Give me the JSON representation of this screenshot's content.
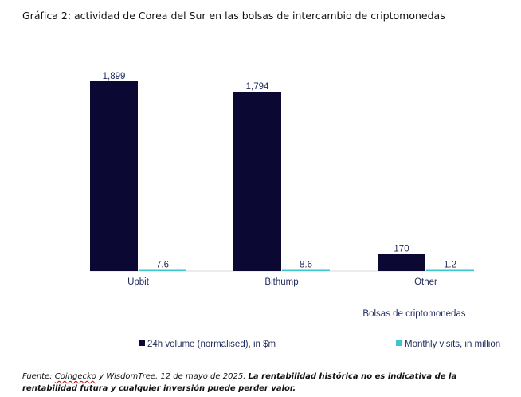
{
  "title": "Gráfica 2: actividad de Corea del Sur en las bolsas de intercambio de criptomonedas",
  "chart_data": {
    "type": "bar",
    "categories": [
      "Upbit",
      "Bithump",
      "Other"
    ],
    "series": [
      {
        "name": "24h volume (normalised), in $m",
        "values": [
          1899,
          1794,
          170
        ],
        "labels": [
          "1,899",
          "1,794",
          "170"
        ],
        "color": "#0b0833"
      },
      {
        "name": "Monthly visits, in million",
        "values": [
          7.6,
          8.6,
          1.2
        ],
        "labels": [
          "7.6",
          "8.6",
          "1.2"
        ],
        "color": "#3ec6cf"
      }
    ],
    "xlabel": "Bolsas de criptomonedas",
    "ylabel": "",
    "ylim": [
      0,
      1899
    ],
    "grid": false,
    "legend_position": "bottom"
  },
  "footnote": {
    "source_name": "Coingecko",
    "source_rest": " y WisdomTree. 12 de mayo de 2025. ",
    "disclaimer": "La rentabilidad histórica no es indicativa de la rentabilidad futura y cualquier inversión puede perder valor.",
    "prefix": "Fuente: "
  }
}
